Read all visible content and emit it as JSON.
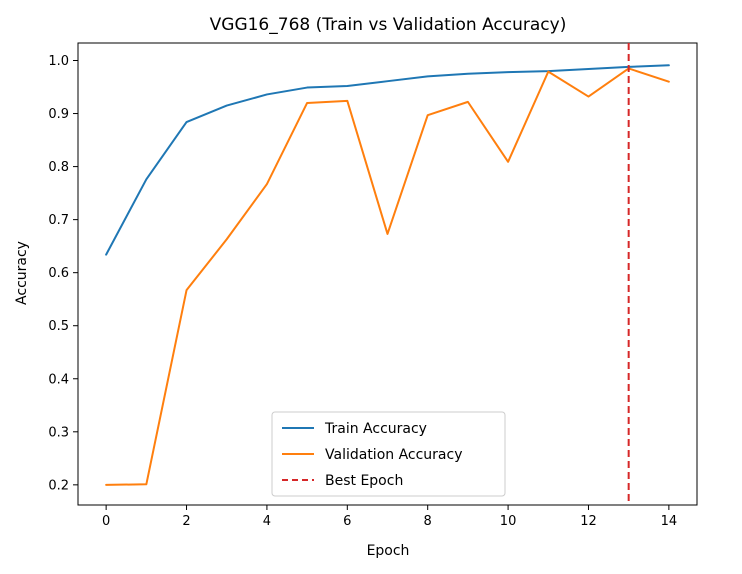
{
  "chart_data": {
    "type": "line",
    "title": "VGG16_768 (Train vs Validation Accuracy)",
    "xlabel": "Epoch",
    "ylabel": "Accuracy",
    "xlim": [
      -0.7,
      14.7
    ],
    "ylim": [
      0.162,
      1.033
    ],
    "xticks": [
      0,
      2,
      4,
      6,
      8,
      10,
      12,
      14
    ],
    "yticks": [
      0.2,
      0.3,
      0.4,
      0.5,
      0.6,
      0.7,
      0.8,
      0.9,
      1.0
    ],
    "xtick_labels": [
      "0",
      "2",
      "4",
      "6",
      "8",
      "10",
      "12",
      "14"
    ],
    "ytick_labels": [
      "0.2",
      "0.3",
      "0.4",
      "0.5",
      "0.6",
      "0.7",
      "0.8",
      "0.9",
      "1.0"
    ],
    "x": [
      0,
      1,
      2,
      3,
      4,
      5,
      6,
      7,
      8,
      9,
      10,
      11,
      12,
      13,
      14
    ],
    "series": [
      {
        "name": "Train Accuracy",
        "color": "#1f77b4",
        "style": "solid",
        "values": [
          0.634,
          0.776,
          0.884,
          0.915,
          0.936,
          0.949,
          0.952,
          0.961,
          0.97,
          0.975,
          0.978,
          0.98,
          0.984,
          0.988,
          0.991
        ]
      },
      {
        "name": "Validation Accuracy",
        "color": "#ff7f0e",
        "style": "solid",
        "values": [
          0.2,
          0.201,
          0.567,
          0.663,
          0.767,
          0.92,
          0.924,
          0.673,
          0.897,
          0.922,
          0.809,
          0.979,
          0.932,
          0.985,
          0.96
        ]
      }
    ],
    "vlines": [
      {
        "name": "Best Epoch",
        "x": 13,
        "color": "#d62728",
        "style": "dashed"
      }
    ],
    "legend": {
      "position": "lower-center",
      "entries": [
        "Train Accuracy",
        "Validation Accuracy",
        "Best Epoch"
      ]
    },
    "grid": false
  }
}
